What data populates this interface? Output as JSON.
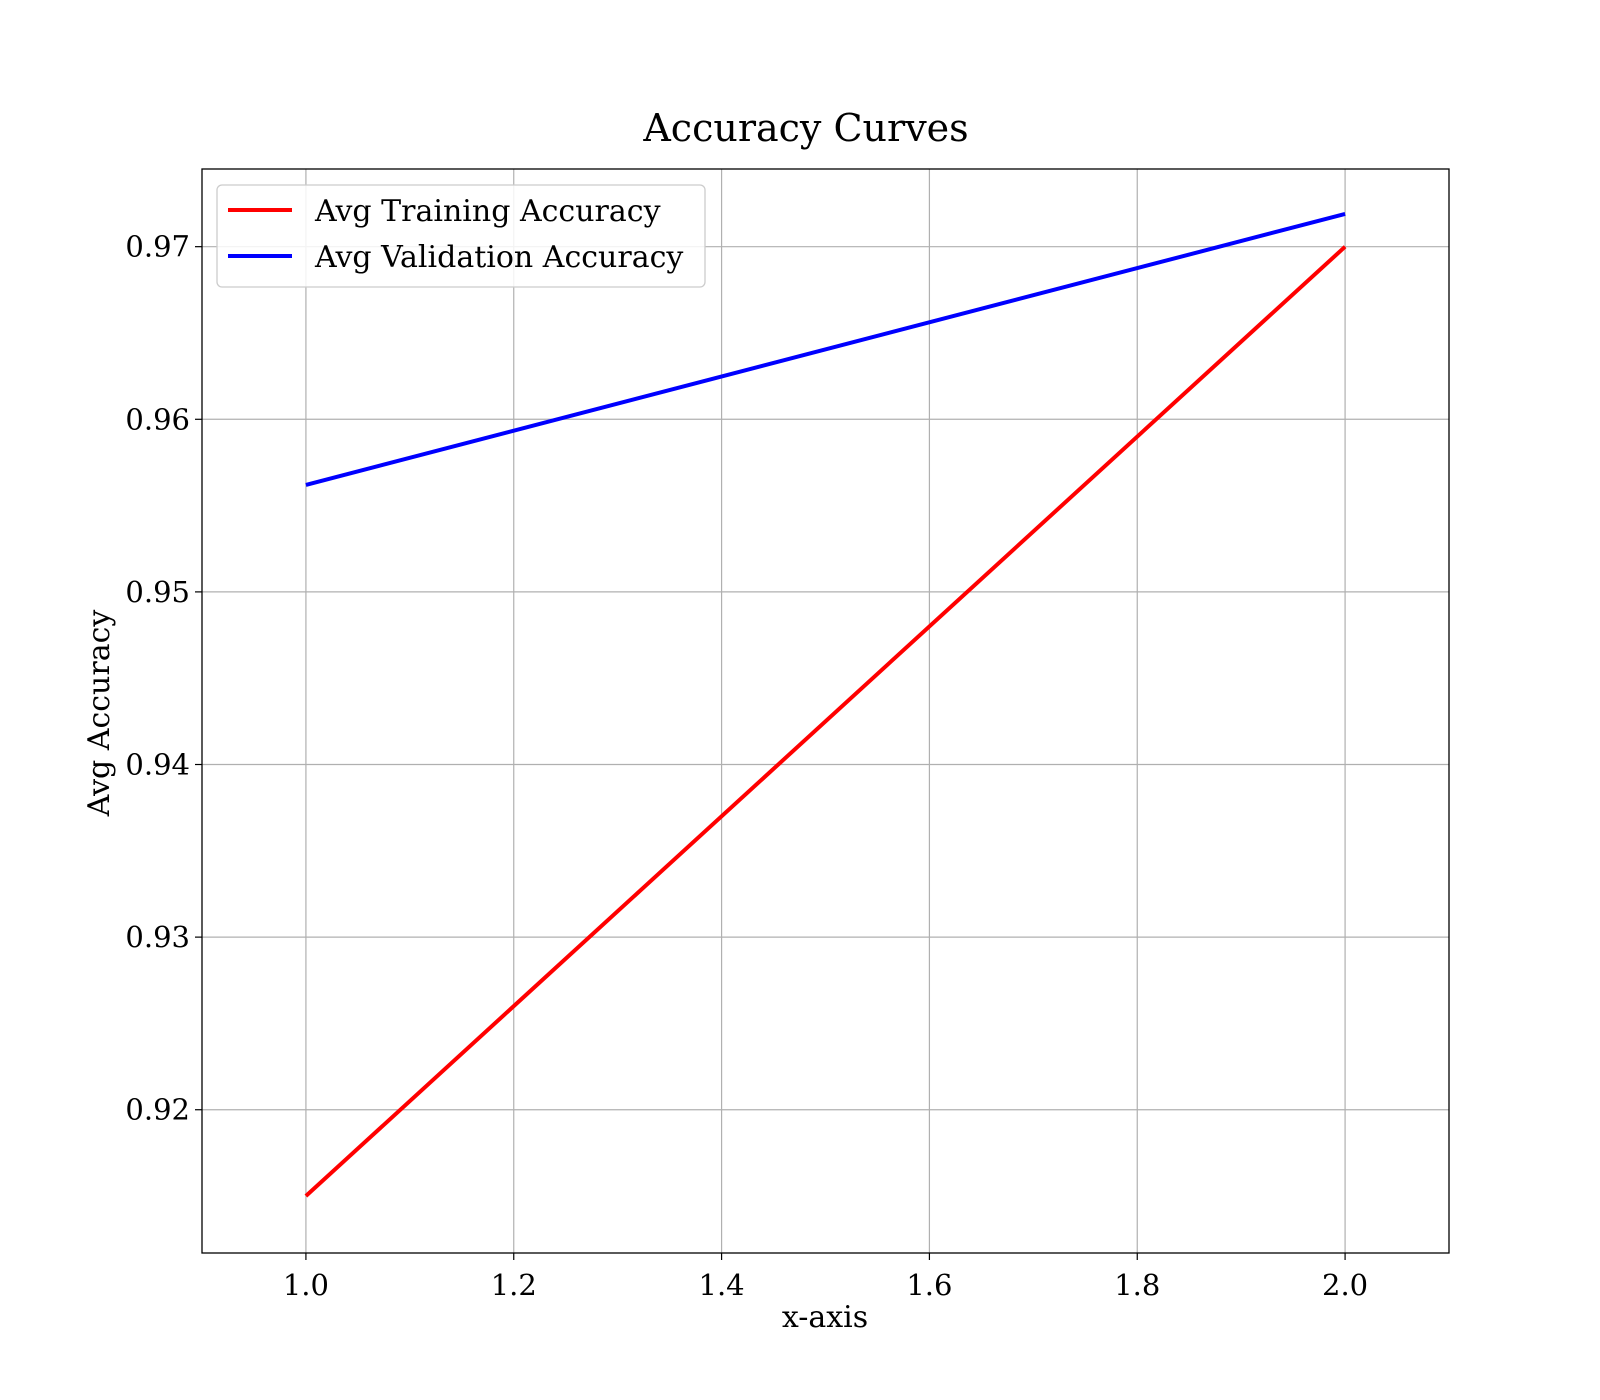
{
  "chart_data": {
    "type": "line",
    "title": "Accuracy Curves",
    "xlabel": "x-axis",
    "ylabel": "Avg Accuracy",
    "xlim": [
      0.9,
      2.1
    ],
    "ylim": [
      0.9117,
      0.9745
    ],
    "x_ticks": [
      1.0,
      1.2,
      1.4,
      1.6,
      1.8,
      2.0
    ],
    "y_ticks": [
      0.92,
      0.93,
      0.94,
      0.95,
      0.96,
      0.97
    ],
    "x_tick_labels": [
      "1.0",
      "1.2",
      "1.4",
      "1.6",
      "1.8",
      "2.0"
    ],
    "y_tick_labels": [
      "0.92",
      "0.93",
      "0.94",
      "0.95",
      "0.96",
      "0.97"
    ],
    "grid": true,
    "legend_position": "top-left",
    "series": [
      {
        "name": "Avg Training Accuracy",
        "color": "#ff0000",
        "x": [
          1.0,
          2.0
        ],
        "y": [
          0.915,
          0.97
        ]
      },
      {
        "name": "Avg Validation Accuracy",
        "color": "#0000ff",
        "x": [
          1.0,
          2.0
        ],
        "y": [
          0.9562,
          0.9719
        ]
      }
    ]
  }
}
